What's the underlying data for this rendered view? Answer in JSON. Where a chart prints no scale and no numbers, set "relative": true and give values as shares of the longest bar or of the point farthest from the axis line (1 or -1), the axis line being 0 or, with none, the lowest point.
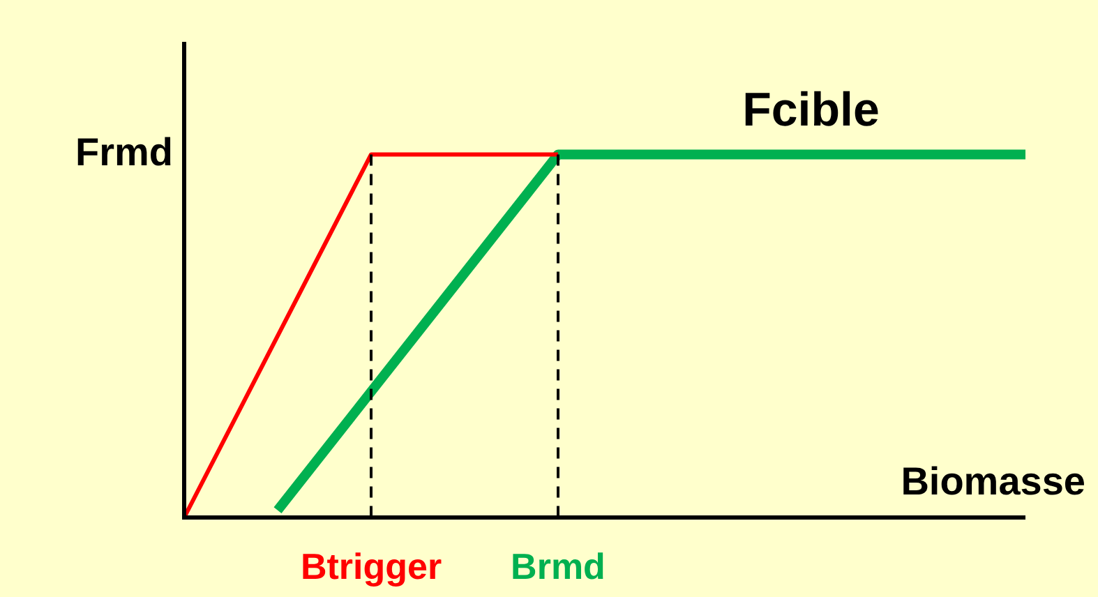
{
  "chart_data": {
    "type": "line",
    "relative": true,
    "xlabel": "Biomasse",
    "ylabel": "Frmd",
    "categories": [
      null,
      null,
      "Btrigger",
      null,
      "Brmd",
      null,
      null,
      null,
      null,
      null
    ],
    "series": [
      {
        "color": "#ff0000",
        "values": [
          0,
          null,
          1,
          null,
          1,
          null,
          null,
          null,
          null,
          null
        ]
      },
      {
        "color": "#00b050",
        "values": [
          null,
          0.02,
          null,
          null,
          1,
          null,
          null,
          null,
          null,
          1
        ]
      }
    ],
    "ref_lines": [
      {
        "axis": "x",
        "value": "Btrigger",
        "color": "#000000",
        "line_style": "dashed"
      },
      {
        "axis": "x",
        "value": "Brmd",
        "color": "#000000",
        "line_style": "dashed"
      }
    ],
    "annotations": [
      {
        "text": "Fcible",
        "y": 1
      }
    ],
    "marker": "none",
    "line_style": "solid",
    "legend": false
  }
}
